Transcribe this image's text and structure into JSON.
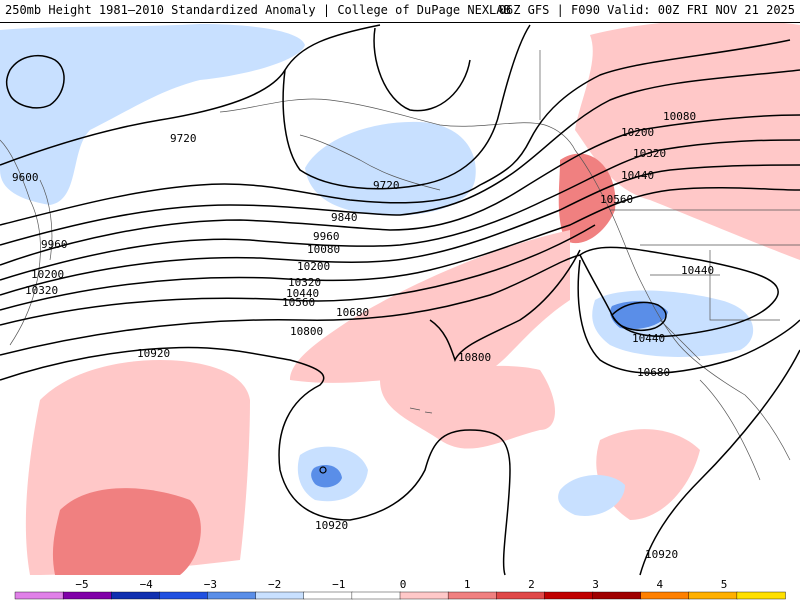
{
  "header": {
    "title_left": "250mb Height 1981–2010 Standardized Anomaly | College of DuPage NEXLAB",
    "title_right": "06Z GFS | F090 Valid: 00Z FRI NOV 21 2025"
  },
  "contour_labels": [
    {
      "text": "9720"
    },
    {
      "text": "9600"
    },
    {
      "text": "9720"
    },
    {
      "text": "9840"
    },
    {
      "text": "9960"
    },
    {
      "text": "9960"
    },
    {
      "text": "10080"
    },
    {
      "text": "10200"
    },
    {
      "text": "10200"
    },
    {
      "text": "10320"
    },
    {
      "text": "10320"
    },
    {
      "text": "10440"
    },
    {
      "text": "10560"
    },
    {
      "text": "10680"
    },
    {
      "text": "10800"
    },
    {
      "text": "10920"
    },
    {
      "text": "10080"
    },
    {
      "text": "10200"
    },
    {
      "text": "10320"
    },
    {
      "text": "10440"
    },
    {
      "text": "10560"
    },
    {
      "text": "10440"
    },
    {
      "text": "10440"
    },
    {
      "text": "10680"
    },
    {
      "text": "10800"
    },
    {
      "text": "10920"
    },
    {
      "text": "10920"
    }
  ],
  "colorbar": {
    "ticks": [
      "−5",
      "−4",
      "−3",
      "−2",
      "−1",
      "0",
      "1",
      "2",
      "3",
      "4",
      "5"
    ],
    "colors": [
      "#e080e8",
      "#8000a8",
      "#1030b0",
      "#2050e0",
      "#5a8ee8",
      "#c8e0ff",
      "#ffffff",
      "#ffffff",
      "#ffc8c8",
      "#f08080",
      "#e04848",
      "#c00000",
      "#a00000",
      "#ff8000",
      "#ffb000",
      "#ffe000"
    ]
  }
}
